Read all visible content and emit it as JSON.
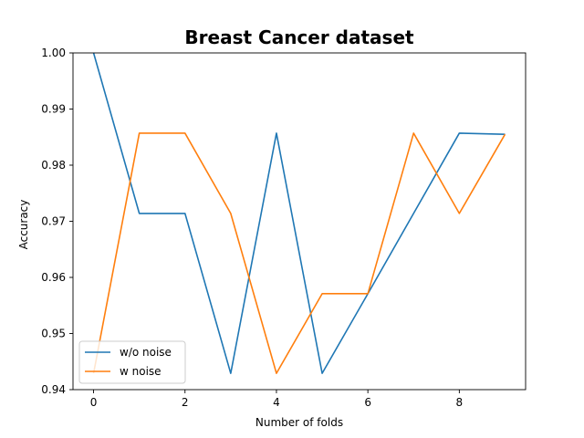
{
  "chart_data": {
    "type": "line",
    "title": "Breast Cancer dataset",
    "xlabel": "Number of folds",
    "ylabel": "Accuracy",
    "x": [
      0,
      1,
      2,
      3,
      4,
      5,
      6,
      7,
      8,
      9
    ],
    "xlim": [
      -0.45,
      9.45
    ],
    "ylim": [
      0.94,
      1.0
    ],
    "xticks": [
      0,
      2,
      4,
      6,
      8
    ],
    "yticks": [
      0.94,
      0.95,
      0.96,
      0.97,
      0.98,
      0.99,
      1.0
    ],
    "ytick_labels": [
      "0.94",
      "0.95",
      "0.96",
      "0.97",
      "0.98",
      "0.99",
      "1.00"
    ],
    "grid": false,
    "legend_position": "lower-left",
    "series": [
      {
        "name": "w/o noise",
        "color": "#1f77b4",
        "values": [
          1.0,
          0.9714,
          0.9714,
          0.9429,
          0.9857,
          0.9429,
          0.9571,
          0.9714,
          0.9857,
          0.9855
        ]
      },
      {
        "name": "w noise",
        "color": "#ff7f0e",
        "values": [
          0.9429,
          0.9857,
          0.9857,
          0.9714,
          0.9429,
          0.9571,
          0.9571,
          0.9857,
          0.9714,
          0.9855
        ]
      }
    ]
  }
}
